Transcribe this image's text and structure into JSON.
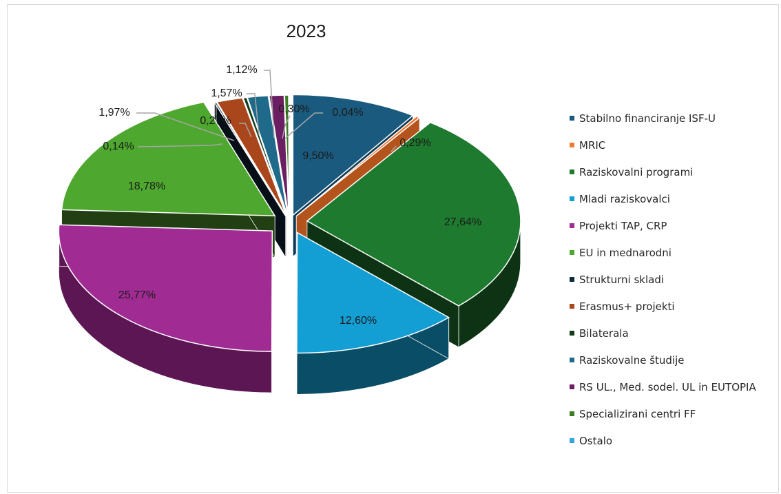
{
  "chart_data": {
    "type": "pie",
    "title": "2023",
    "legend_position": "right",
    "slices": [
      {
        "label": "Stabilno financiranje ISF-U",
        "value": 9.5,
        "display": "9,50%",
        "color": "#1a5a7e",
        "side": "#0e3a55"
      },
      {
        "label": "MRIC",
        "value": 0.29,
        "display": "0,29%",
        "color": "#f07a33",
        "side": "#b3541d"
      },
      {
        "label": "Raziskovalni programi",
        "value": 27.64,
        "display": "27,64%",
        "color": "#1e7a2e",
        "side": "#0d3314"
      },
      {
        "label": "Mladi raziskovalci",
        "value": 12.6,
        "display": "12,60%",
        "color": "#139fd3",
        "side": "#0a4d66"
      },
      {
        "label": "Projekti TAP, CRP",
        "value": 25.77,
        "display": "25,77%",
        "color": "#a02b93",
        "side": "#5c1654"
      },
      {
        "label": "EU in mednarodni",
        "value": 18.78,
        "display": "18,78%",
        "color": "#4ea72e",
        "side": "#223f14"
      },
      {
        "label": "Strukturni skladi",
        "value": 0.14,
        "display": "0,14%",
        "color": "#0d2a3f",
        "side": "#060f18"
      },
      {
        "label": "Erasmus+ projekti",
        "value": 1.97,
        "display": "1,97%",
        "color": "#a9461b",
        "side": "#5e240c"
      },
      {
        "label": "Bilaterala",
        "value": 0.27,
        "display": "0,27%",
        "color": "#123d17",
        "side": "#08190a"
      },
      {
        "label": "Raziskovalne študije",
        "value": 1.57,
        "display": "1,57%",
        "color": "#1f6a8a",
        "side": "#0f3a4d"
      },
      {
        "label": "RS UL., Med. sodel. UL in EUTOPIA",
        "value": 1.12,
        "display": "1,12%",
        "color": "#6b1f62",
        "side": "#3b0f35"
      },
      {
        "label": "Specializirani centri FF",
        "value": 0.3,
        "display": "0,30%",
        "color": "#3a7d22",
        "side": "#1d3f11"
      },
      {
        "label": "Ostalo",
        "value": 0.04,
        "display": "0,04%",
        "color": "#2ea6dd",
        "side": "#155f80"
      }
    ]
  }
}
